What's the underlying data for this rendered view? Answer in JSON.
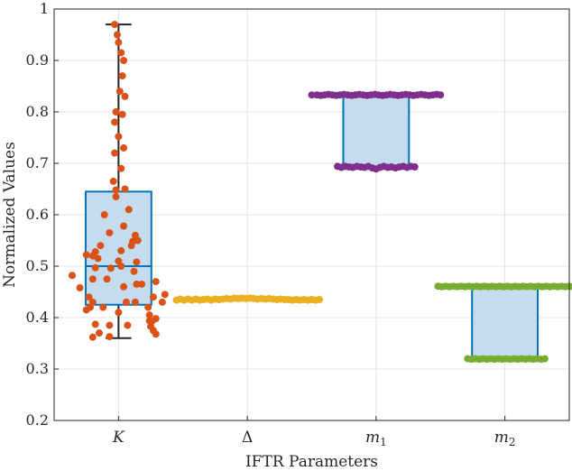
{
  "chart_data": {
    "type": "boxplot",
    "title": "",
    "xlabel": "IFTR Parameters",
    "ylabel": "Normalized Values",
    "ylim": [
      0.2,
      1.0
    ],
    "yticks": [
      "0.2",
      "0.3",
      "0.4",
      "0.5",
      "0.6",
      "0.7",
      "0.8",
      "0.9",
      "1"
    ],
    "grid": true,
    "categories": [
      {
        "label": "K",
        "sub": ""
      },
      {
        "label": "Δ",
        "sub": ""
      },
      {
        "label": "m",
        "sub": "1"
      },
      {
        "label": "m",
        "sub": "2"
      }
    ],
    "boxes": [
      {
        "whisker_low": 0.36,
        "q1": 0.425,
        "median": 0.5,
        "q3": 0.645,
        "whisker_high": 0.97,
        "show_box": true,
        "show_whiskers": true
      },
      {
        "whisker_low": 0.435,
        "q1": 0.435,
        "median": 0.435,
        "q3": 0.435,
        "whisker_high": 0.435,
        "show_box": false,
        "show_whiskers": false
      },
      {
        "whisker_low": 0.69,
        "q1": 0.69,
        "median": 0.69,
        "q3": 0.833,
        "whisker_high": 0.833,
        "show_box": true,
        "show_whiskers": false
      },
      {
        "whisker_low": 0.32,
        "q1": 0.32,
        "median": 0.32,
        "q3": 0.46,
        "whisker_high": 0.46,
        "show_box": true,
        "show_whiskers": false
      }
    ],
    "series": [
      {
        "name": "K",
        "color": "#d95319",
        "points": [
          [
            -0.03,
            0.97
          ],
          [
            -0.01,
            0.95
          ],
          [
            0.0,
            0.935
          ],
          [
            0.02,
            0.915
          ],
          [
            0.04,
            0.9
          ],
          [
            0.03,
            0.87
          ],
          [
            0.01,
            0.84
          ],
          [
            0.05,
            0.83
          ],
          [
            -0.02,
            0.8
          ],
          [
            0.03,
            0.795
          ],
          [
            -0.03,
            0.78
          ],
          [
            0.0,
            0.752
          ],
          [
            0.04,
            0.73
          ],
          [
            -0.03,
            0.72
          ],
          [
            0.02,
            0.69
          ],
          [
            -0.04,
            0.665
          ],
          [
            -0.02,
            0.648
          ],
          [
            0.05,
            0.65
          ],
          [
            -0.02,
            0.635
          ],
          [
            0.08,
            0.61
          ],
          [
            -0.11,
            0.6
          ],
          [
            0.04,
            0.578
          ],
          [
            -0.07,
            0.565
          ],
          [
            0.13,
            0.56
          ],
          [
            0.15,
            0.55
          ],
          [
            0.11,
            0.548
          ],
          [
            0.1,
            0.54
          ],
          [
            -0.14,
            0.54
          ],
          [
            0.02,
            0.53
          ],
          [
            -0.18,
            0.528
          ],
          [
            -0.25,
            0.522
          ],
          [
            -0.2,
            0.52
          ],
          [
            -0.16,
            0.515
          ],
          [
            0.0,
            0.51
          ],
          [
            0.14,
            0.508
          ],
          [
            0.02,
            0.5
          ],
          [
            -0.18,
            0.497
          ],
          [
            -0.06,
            0.496
          ],
          [
            0.12,
            0.49
          ],
          [
            -0.36,
            0.482
          ],
          [
            -0.2,
            0.475
          ],
          [
            -0.09,
            0.475
          ],
          [
            0.18,
            0.465
          ],
          [
            0.29,
            0.47
          ],
          [
            0.14,
            0.465
          ],
          [
            0.04,
            0.46
          ],
          [
            -0.3,
            0.458
          ],
          [
            0.36,
            0.445
          ],
          [
            -0.23,
            0.44
          ],
          [
            0.27,
            0.44
          ],
          [
            0.34,
            0.43
          ],
          [
            -0.2,
            0.43
          ],
          [
            0.13,
            0.43
          ],
          [
            -0.22,
            0.42
          ],
          [
            -0.12,
            0.42
          ],
          [
            0.06,
            0.43
          ],
          [
            0.23,
            0.42
          ],
          [
            -0.25,
            0.415
          ],
          [
            0.0,
            0.41
          ],
          [
            0.24,
            0.405
          ],
          [
            0.29,
            0.398
          ],
          [
            0.24,
            0.394
          ],
          [
            0.26,
            0.393
          ],
          [
            -0.18,
            0.387
          ],
          [
            -0.07,
            0.385
          ],
          [
            0.07,
            0.385
          ],
          [
            0.25,
            0.383
          ],
          [
            -0.15,
            0.37
          ],
          [
            0.27,
            0.375
          ],
          [
            -0.2,
            0.362
          ],
          [
            -0.07,
            0.363
          ],
          [
            0.29,
            0.368
          ]
        ]
      },
      {
        "name": "Δ",
        "color": "#edb120",
        "points": [
          [
            -0.55,
            0.434
          ],
          [
            -0.52,
            0.436
          ],
          [
            -0.49,
            0.434
          ],
          [
            -0.46,
            0.436
          ],
          [
            -0.43,
            0.434
          ],
          [
            -0.4,
            0.436
          ],
          [
            -0.37,
            0.434
          ],
          [
            -0.34,
            0.435
          ],
          [
            -0.31,
            0.436
          ],
          [
            -0.28,
            0.434
          ],
          [
            -0.25,
            0.436
          ],
          [
            -0.22,
            0.435
          ],
          [
            -0.19,
            0.436
          ],
          [
            -0.16,
            0.437
          ],
          [
            -0.13,
            0.436
          ],
          [
            -0.1,
            0.438
          ],
          [
            -0.07,
            0.437
          ],
          [
            -0.04,
            0.438
          ],
          [
            -0.01,
            0.437
          ],
          [
            0.02,
            0.438
          ],
          [
            0.05,
            0.437
          ],
          [
            0.08,
            0.436
          ],
          [
            0.11,
            0.437
          ],
          [
            0.14,
            0.436
          ],
          [
            0.17,
            0.437
          ],
          [
            0.2,
            0.436
          ],
          [
            0.23,
            0.435
          ],
          [
            0.26,
            0.436
          ],
          [
            0.29,
            0.435
          ],
          [
            0.32,
            0.435
          ],
          [
            0.35,
            0.434
          ],
          [
            0.38,
            0.435
          ],
          [
            0.41,
            0.434
          ],
          [
            0.44,
            0.435
          ],
          [
            0.47,
            0.434
          ],
          [
            0.5,
            0.435
          ],
          [
            0.53,
            0.434
          ],
          [
            0.56,
            0.435
          ]
        ]
      },
      {
        "name": "m1",
        "color": "#7e2f8e",
        "points": [
          [
            -0.5,
            0.833
          ],
          [
            -0.46,
            0.833
          ],
          [
            -0.43,
            0.832
          ],
          [
            -0.4,
            0.833
          ],
          [
            -0.37,
            0.834
          ],
          [
            -0.34,
            0.833
          ],
          [
            -0.31,
            0.832
          ],
          [
            -0.28,
            0.833
          ],
          [
            -0.25,
            0.834
          ],
          [
            -0.22,
            0.833
          ],
          [
            -0.19,
            0.832
          ],
          [
            -0.16,
            0.833
          ],
          [
            -0.13,
            0.834
          ],
          [
            -0.1,
            0.833
          ],
          [
            -0.07,
            0.832
          ],
          [
            -0.04,
            0.833
          ],
          [
            -0.01,
            0.834
          ],
          [
            0.02,
            0.833
          ],
          [
            0.05,
            0.832
          ],
          [
            0.08,
            0.833
          ],
          [
            0.11,
            0.834
          ],
          [
            0.14,
            0.833
          ],
          [
            0.17,
            0.832
          ],
          [
            0.2,
            0.833
          ],
          [
            0.23,
            0.834
          ],
          [
            0.26,
            0.833
          ],
          [
            0.29,
            0.832
          ],
          [
            0.32,
            0.833
          ],
          [
            0.35,
            0.834
          ],
          [
            0.38,
            0.833
          ],
          [
            0.41,
            0.832
          ],
          [
            0.44,
            0.833
          ],
          [
            0.47,
            0.834
          ],
          [
            0.5,
            0.833
          ],
          [
            -0.3,
            0.694
          ],
          [
            -0.27,
            0.692
          ],
          [
            -0.24,
            0.694
          ],
          [
            -0.21,
            0.693
          ],
          [
            -0.18,
            0.692
          ],
          [
            -0.15,
            0.694
          ],
          [
            -0.12,
            0.693
          ],
          [
            -0.09,
            0.692
          ],
          [
            -0.06,
            0.694
          ],
          [
            -0.03,
            0.691
          ],
          [
            0.0,
            0.689
          ],
          [
            0.03,
            0.692
          ],
          [
            0.06,
            0.694
          ],
          [
            0.09,
            0.692
          ],
          [
            0.12,
            0.693
          ],
          [
            0.15,
            0.691
          ],
          [
            0.18,
            0.693
          ],
          [
            0.21,
            0.694
          ],
          [
            0.24,
            0.692
          ],
          [
            0.27,
            0.694
          ],
          [
            0.3,
            0.693
          ]
        ]
      },
      {
        "name": "m2",
        "color": "#77ac30",
        "points": [
          [
            -0.52,
            0.461
          ],
          [
            -0.49,
            0.46
          ],
          [
            -0.46,
            0.461
          ],
          [
            -0.43,
            0.46
          ],
          [
            -0.4,
            0.461
          ],
          [
            -0.37,
            0.46
          ],
          [
            -0.34,
            0.461
          ],
          [
            -0.31,
            0.46
          ],
          [
            -0.28,
            0.461
          ],
          [
            -0.25,
            0.46
          ],
          [
            -0.22,
            0.461
          ],
          [
            -0.19,
            0.46
          ],
          [
            -0.16,
            0.461
          ],
          [
            -0.13,
            0.46
          ],
          [
            -0.1,
            0.461
          ],
          [
            -0.07,
            0.46
          ],
          [
            -0.04,
            0.461
          ],
          [
            -0.01,
            0.46
          ],
          [
            0.02,
            0.461
          ],
          [
            0.05,
            0.46
          ],
          [
            0.08,
            0.461
          ],
          [
            0.11,
            0.46
          ],
          [
            0.14,
            0.461
          ],
          [
            0.17,
            0.46
          ],
          [
            0.2,
            0.461
          ],
          [
            0.23,
            0.46
          ],
          [
            0.26,
            0.461
          ],
          [
            0.29,
            0.46
          ],
          [
            0.32,
            0.461
          ],
          [
            0.35,
            0.46
          ],
          [
            0.38,
            0.461
          ],
          [
            0.41,
            0.46
          ],
          [
            0.44,
            0.461
          ],
          [
            0.47,
            0.46
          ],
          [
            0.5,
            0.461
          ],
          [
            0.53,
            0.46
          ],
          [
            -0.29,
            0.32
          ],
          [
            -0.26,
            0.319
          ],
          [
            -0.23,
            0.32
          ],
          [
            -0.2,
            0.319
          ],
          [
            -0.17,
            0.32
          ],
          [
            -0.14,
            0.319
          ],
          [
            -0.11,
            0.32
          ],
          [
            -0.08,
            0.319
          ],
          [
            -0.05,
            0.32
          ],
          [
            -0.02,
            0.319
          ],
          [
            0.01,
            0.32
          ],
          [
            0.04,
            0.319
          ],
          [
            0.07,
            0.32
          ],
          [
            0.1,
            0.319
          ],
          [
            0.13,
            0.32
          ],
          [
            0.16,
            0.319
          ],
          [
            0.19,
            0.32
          ],
          [
            0.22,
            0.319
          ],
          [
            0.25,
            0.32
          ],
          [
            0.28,
            0.319
          ],
          [
            0.31,
            0.32
          ]
        ]
      }
    ],
    "colors": {
      "box_fill": "#c5dcee",
      "box_edge": "#0072bd",
      "whisker": "#262626",
      "grid": "#e3e3e3",
      "axis": "#262626"
    }
  }
}
